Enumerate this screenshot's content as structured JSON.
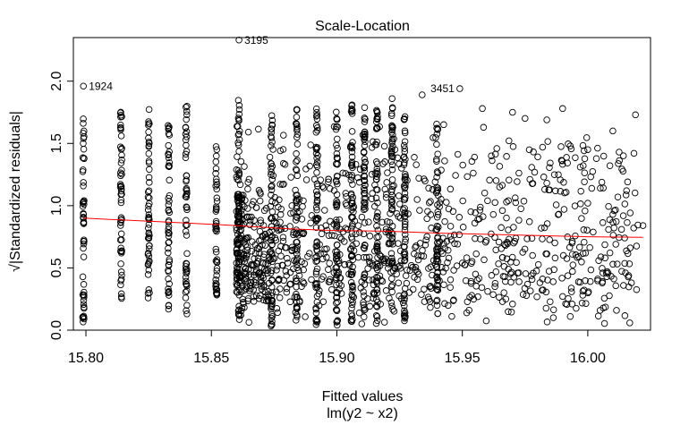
{
  "chart_data": {
    "type": "scatter",
    "title": "Scale-Location",
    "xlabel": "Fitted values",
    "subtitle": "lm(y2 ~ x2)",
    "ylabel": "√|Standardized residuals|",
    "xlim": [
      15.795,
      16.025
    ],
    "ylim": [
      0.0,
      2.35
    ],
    "x_ticks": [
      "15.80",
      "15.85",
      "15.90",
      "15.95",
      "16.00"
    ],
    "x_tick_values": [
      15.8,
      15.85,
      15.9,
      15.95,
      16.0
    ],
    "y_ticks": [
      "0.0",
      "0.5",
      "1.0",
      "1.5",
      "2.0"
    ],
    "y_tick_values": [
      0.0,
      0.5,
      1.0,
      1.5,
      2.0
    ],
    "grid": false,
    "columns": [
      {
        "x": 15.799,
        "ymin": 0.03,
        "ymax": 1.72
      },
      {
        "x": 15.814,
        "ymin": 0.22,
        "ymax": 1.76
      },
      {
        "x": 15.825,
        "ymin": 0.2,
        "ymax": 1.81
      },
      {
        "x": 15.833,
        "ymin": 0.16,
        "ymax": 1.74
      },
      {
        "x": 15.84,
        "ymin": 0.12,
        "ymax": 1.8
      },
      {
        "x": 15.852,
        "ymin": 0.28,
        "ymax": 1.52
      },
      {
        "x": 15.861,
        "ymin": 0.08,
        "ymax": 1.86
      },
      {
        "x": 15.874,
        "ymin": 0.02,
        "ymax": 1.75
      },
      {
        "x": 15.884,
        "ymin": 0.05,
        "ymax": 1.81
      },
      {
        "x": 15.892,
        "ymin": 0.02,
        "ymax": 1.8
      },
      {
        "x": 15.9,
        "ymin": 0.03,
        "ymax": 1.78
      },
      {
        "x": 15.906,
        "ymin": 0.02,
        "ymax": 1.88
      },
      {
        "x": 15.911,
        "ymin": 0.02,
        "ymax": 1.8
      },
      {
        "x": 15.916,
        "ymin": 0.03,
        "ymax": 1.78
      },
      {
        "x": 15.922,
        "ymin": 0.04,
        "ymax": 1.8
      },
      {
        "x": 15.927,
        "ymin": 0.04,
        "ymax": 1.75
      },
      {
        "x": 15.94,
        "ymin": 0.07,
        "ymax": 1.68
      }
    ],
    "scatter_xrange": [
      15.9,
      16.02
    ],
    "outliers": [
      {
        "label": "3195",
        "x": 15.861,
        "y": 2.33
      },
      {
        "label": "1924",
        "x": 15.799,
        "y": 1.96
      },
      {
        "label": "3451",
        "x": 15.949,
        "y": 1.94
      }
    ],
    "extra_points": [
      {
        "x": 15.934,
        "y": 1.89
      },
      {
        "x": 15.922,
        "y": 1.86
      },
      {
        "x": 15.958,
        "y": 1.78
      },
      {
        "x": 15.97,
        "y": 1.75
      },
      {
        "x": 15.975,
        "y": 1.7
      },
      {
        "x": 15.99,
        "y": 1.78
      },
      {
        "x": 16.019,
        "y": 1.73
      },
      {
        "x": 16.01,
        "y": 1.6
      },
      {
        "x": 16.0,
        "y": 1.45
      },
      {
        "x": 15.993,
        "y": 1.48
      },
      {
        "x": 15.997,
        "y": 1.31
      },
      {
        "x": 16.005,
        "y": 1.14
      },
      {
        "x": 16.0,
        "y": 1.02
      },
      {
        "x": 16.022,
        "y": 0.84
      },
      {
        "x": 16.01,
        "y": 0.93
      },
      {
        "x": 16.015,
        "y": 0.46
      },
      {
        "x": 16.006,
        "y": 0.46
      },
      {
        "x": 15.998,
        "y": 0.28
      },
      {
        "x": 15.99,
        "y": 0.27
      },
      {
        "x": 15.993,
        "y": 0.11
      },
      {
        "x": 15.97,
        "y": 0.21
      },
      {
        "x": 15.963,
        "y": 0.35
      },
      {
        "x": 15.978,
        "y": 0.6
      },
      {
        "x": 15.987,
        "y": 0.58
      },
      {
        "x": 15.966,
        "y": 0.96
      },
      {
        "x": 15.982,
        "y": 1.47
      }
    ],
    "lowess": {
      "color": "#ff0000",
      "x": [
        15.799,
        15.83,
        15.86,
        15.88,
        15.9,
        15.92,
        15.94,
        15.96,
        15.98,
        16.0,
        16.022
      ],
      "y": [
        0.9,
        0.87,
        0.84,
        0.815,
        0.8,
        0.795,
        0.78,
        0.77,
        0.76,
        0.75,
        0.745
      ]
    }
  }
}
